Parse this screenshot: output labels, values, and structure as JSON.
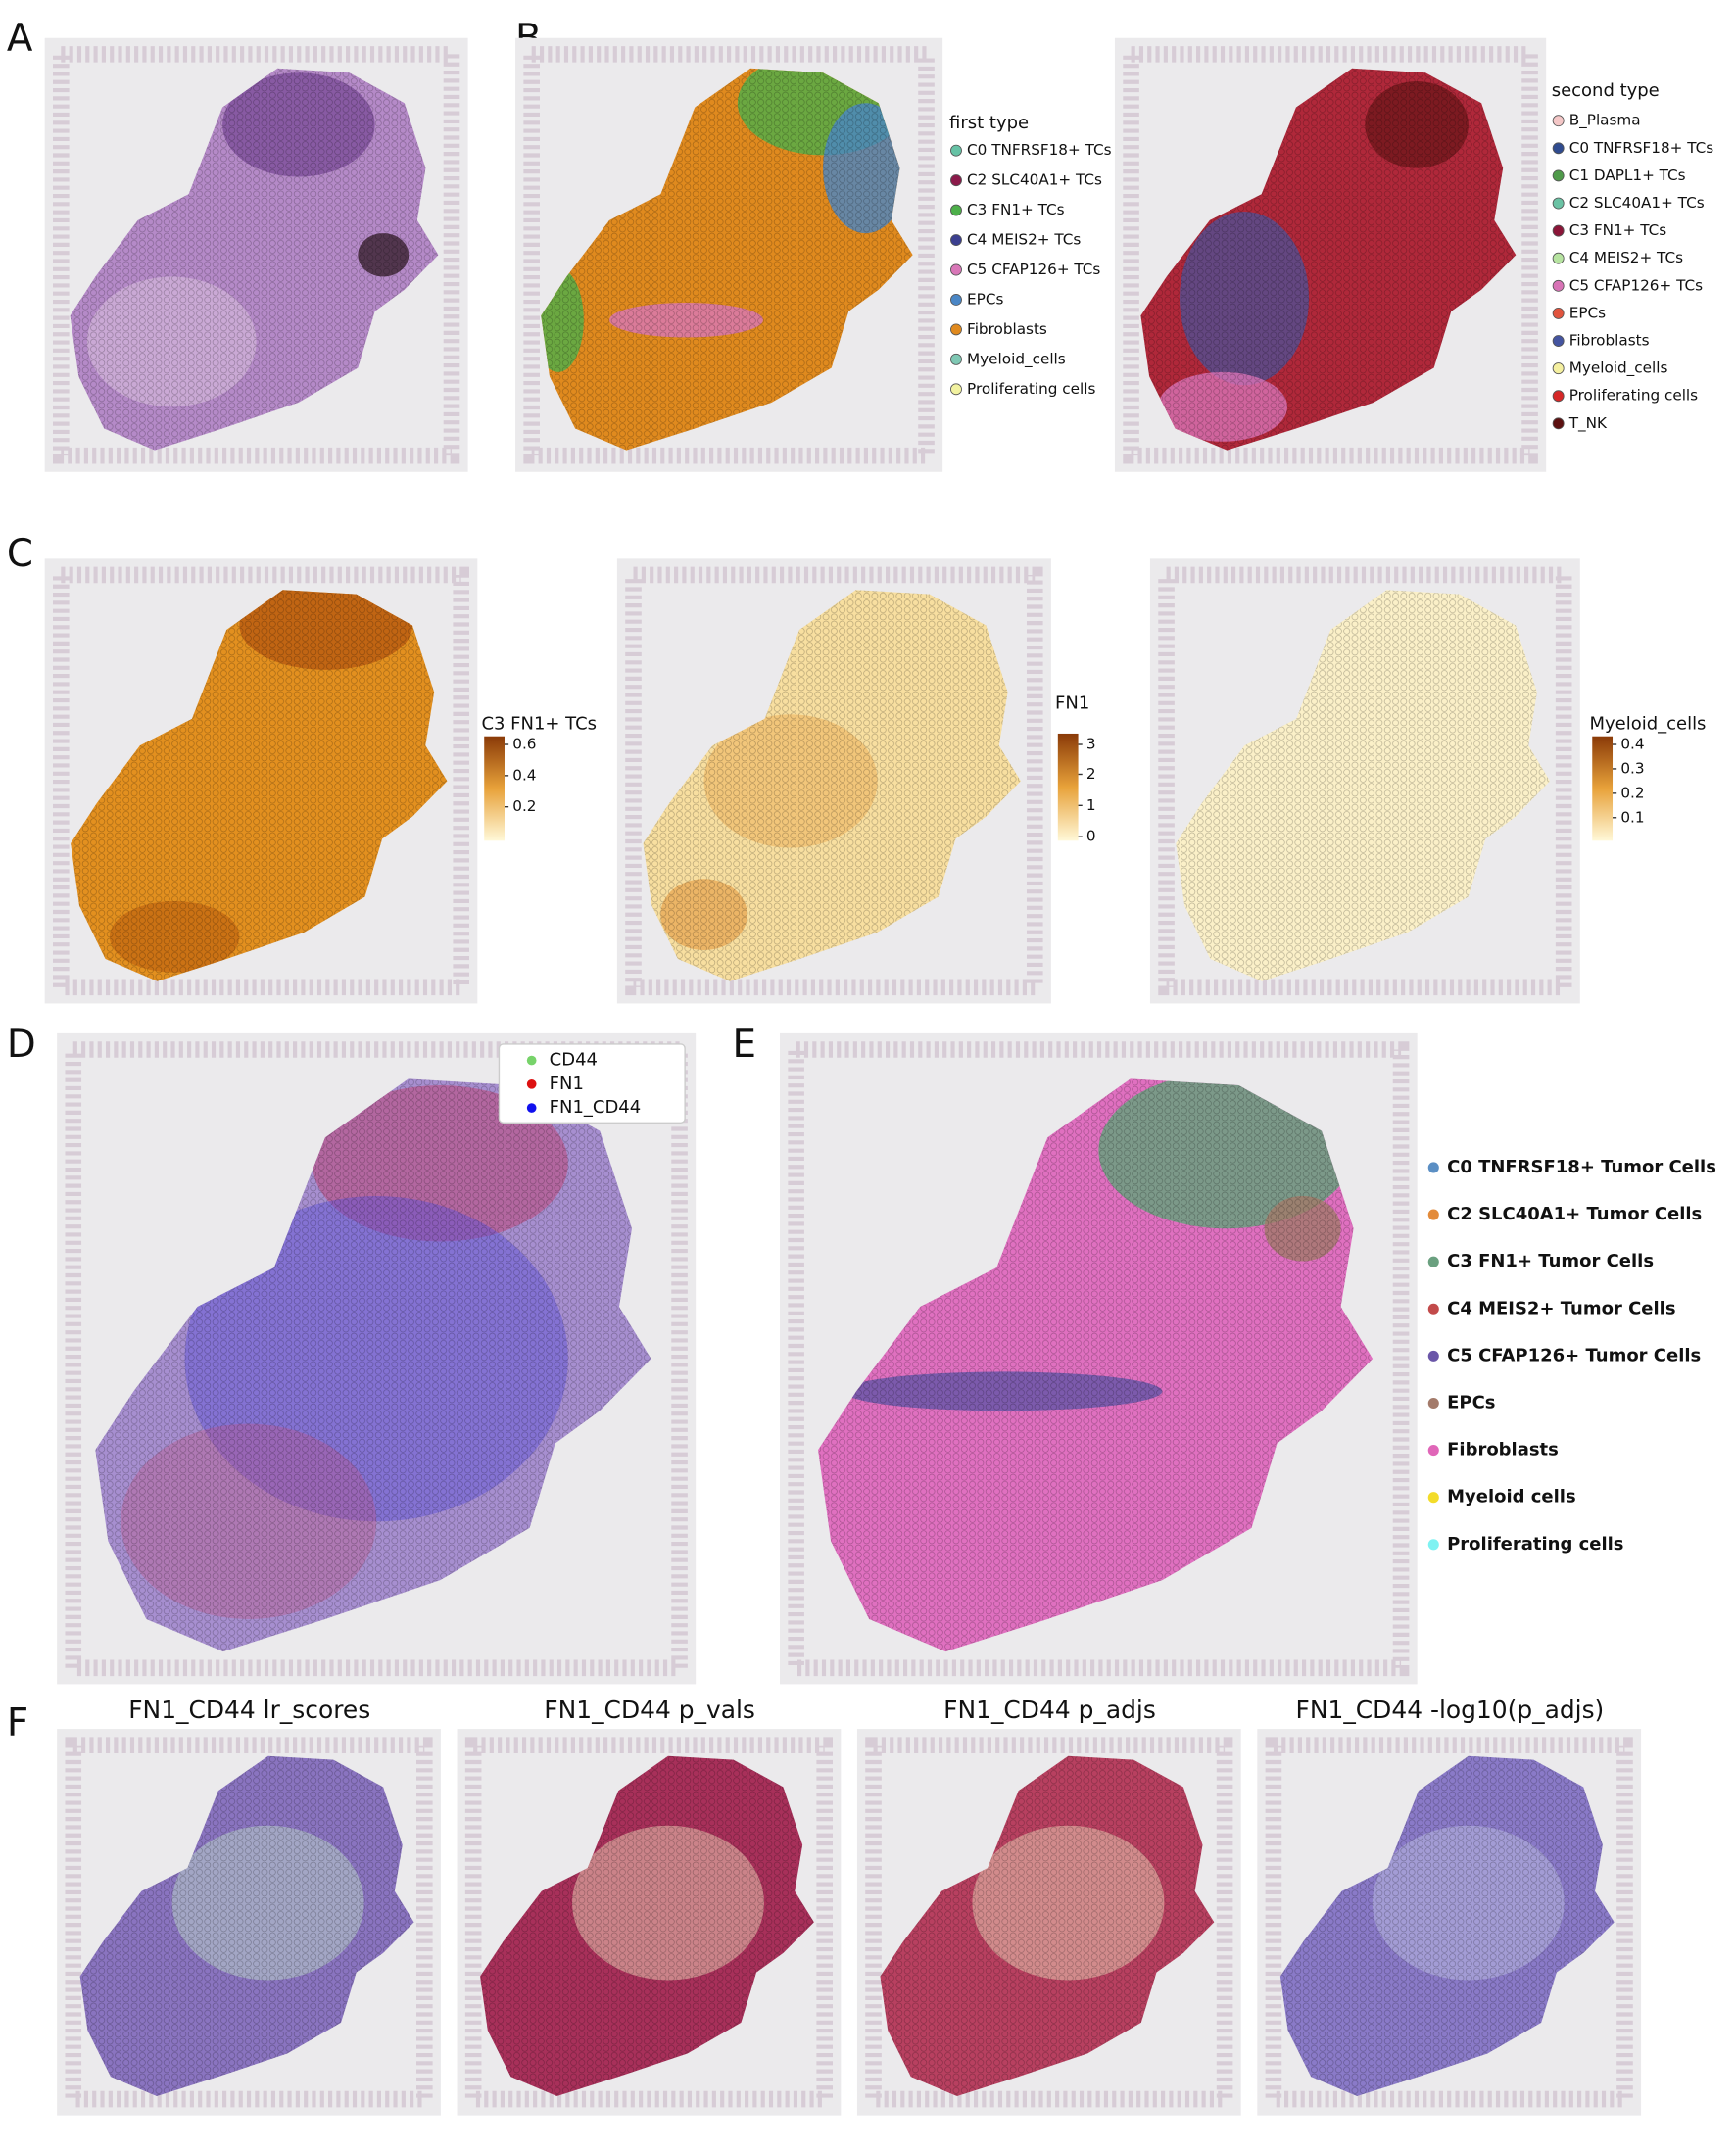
{
  "panel_labels": [
    "A",
    "B",
    "C",
    "D",
    "E",
    "F"
  ],
  "B": {
    "first_type": {
      "title": "first type",
      "items": [
        {
          "name": "C0 TNFRSF18+ TCs",
          "color": "#66c2a5"
        },
        {
          "name": "C2 SLC40A1+ TCs",
          "color": "#8b1a4a"
        },
        {
          "name": "C3 FN1+ TCs",
          "color": "#4daf4a"
        },
        {
          "name": "C4 MEIS2+ TCs",
          "color": "#3b3f8f"
        },
        {
          "name": "C5 CFAP126+ TCs",
          "color": "#d977b8"
        },
        {
          "name": "EPCs",
          "color": "#4a86c5"
        },
        {
          "name": "Fibroblasts",
          "color": "#e08a1e"
        },
        {
          "name": "Myeloid_cells",
          "color": "#7fc8b4"
        },
        {
          "name": "Proliferating cells",
          "color": "#f2f2a0"
        }
      ]
    },
    "second_type": {
      "title": "second type",
      "items": [
        {
          "name": "B_Plasma",
          "color": "#f4c7c7"
        },
        {
          "name": "C0 TNFRSF18+ TCs",
          "color": "#2f4b8f"
        },
        {
          "name": "C1 DAPL1+ TCs",
          "color": "#4f9a4a"
        },
        {
          "name": "C2 SLC40A1+ TCs",
          "color": "#6ac2a4"
        },
        {
          "name": "C3 FN1+ TCs",
          "color": "#8b1538"
        },
        {
          "name": "C4 MEIS2+ TCs",
          "color": "#b6e3a0"
        },
        {
          "name": "C5 CFAP126+ TCs",
          "color": "#d873b6"
        },
        {
          "name": "EPCs",
          "color": "#e1543e"
        },
        {
          "name": "Fibroblasts",
          "color": "#4454a0"
        },
        {
          "name": "Myeloid_cells",
          "color": "#f5f0a0"
        },
        {
          "name": "Proliferating cells",
          "color": "#d62828"
        },
        {
          "name": "T_NK",
          "color": "#5c1010"
        }
      ]
    }
  },
  "C": {
    "colorbars": [
      {
        "title": "C3 FN1+ TCs",
        "ticks": [
          0.6,
          0.4,
          0.2
        ]
      },
      {
        "title": "FN1",
        "ticks": [
          3,
          2,
          1,
          0
        ]
      },
      {
        "title": "Myeloid_cells",
        "ticks": [
          0.4,
          0.3,
          0.2,
          0.1
        ]
      }
    ]
  },
  "D": {
    "legend": [
      {
        "name": "CD44",
        "color": "#77d36a"
      },
      {
        "name": "FN1",
        "color": "#dd1111"
      },
      {
        "name": "FN1_CD44",
        "color": "#1010ee"
      }
    ]
  },
  "E": {
    "legend": [
      {
        "name": "C0 TNFRSF18+ Tumor Cells",
        "color": "#5b8fc4"
      },
      {
        "name": "C2 SLC40A1+ Tumor Cells",
        "color": "#e38b3a"
      },
      {
        "name": "C3 FN1+ Tumor Cells",
        "color": "#6aa07f"
      },
      {
        "name": "C4 MEIS2+ Tumor Cells",
        "color": "#c24a4a"
      },
      {
        "name": "C5 CFAP126+ Tumor Cells",
        "color": "#6a56a8"
      },
      {
        "name": "EPCs",
        "color": "#a37a6a"
      },
      {
        "name": "Fibroblasts",
        "color": "#e066b8"
      },
      {
        "name": "Myeloid cells",
        "color": "#f3dc2a"
      },
      {
        "name": "Proliferating cells",
        "color": "#7ff2f2"
      }
    ]
  },
  "F": {
    "titles": [
      "FN1_CD44 lr_scores",
      "FN1_CD44 p_vals",
      "FN1_CD44 p_adjs",
      "FN1_CD44 -log10(p_adjs)"
    ]
  }
}
